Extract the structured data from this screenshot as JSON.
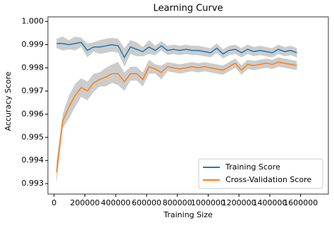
{
  "chart_data": {
    "type": "line",
    "title": "Learning Curve",
    "x_label": "Training Size",
    "y_label": "Accuracy Score",
    "x": [
      16000,
      56000,
      96000,
      136000,
      176000,
      216000,
      256000,
      296000,
      336000,
      376000,
      416000,
      456000,
      496000,
      536000,
      576000,
      616000,
      656000,
      696000,
      736000,
      776000,
      816000,
      856000,
      896000,
      936000,
      976000,
      1016000,
      1056000,
      1096000,
      1136000,
      1176000,
      1216000,
      1256000,
      1296000,
      1336000,
      1376000,
      1416000,
      1456000,
      1496000,
      1536000,
      1576000
    ],
    "series": [
      {
        "name": "Training Score",
        "color": "#1f77b4",
        "values": [
          0.99905,
          0.99905,
          0.999,
          0.99905,
          0.9991,
          0.99875,
          0.9989,
          0.9989,
          0.99895,
          0.999,
          0.99895,
          0.99845,
          0.9989,
          0.9988,
          0.9987,
          0.9989,
          0.99875,
          0.99895,
          0.99875,
          0.9988,
          0.99875,
          0.9988,
          0.99875,
          0.99875,
          0.9987,
          0.99865,
          0.99885,
          0.9986,
          0.99875,
          0.9988,
          0.99865,
          0.9988,
          0.9987,
          0.99875,
          0.9987,
          0.99865,
          0.9988,
          0.9987,
          0.99875,
          0.99865
        ],
        "std": [
          0.0002,
          0.0003,
          0.0002,
          0.0003,
          0.0002,
          0.0003,
          0.0002,
          0.0003,
          0.0003,
          0.0003,
          0.0003,
          0.0004,
          0.0003,
          0.0003,
          0.0002,
          0.0003,
          0.0002,
          0.0002,
          0.0002,
          0.0002,
          0.0002,
          0.0002,
          0.0002,
          0.0002,
          0.0002,
          0.0002,
          0.0002,
          0.0002,
          0.0002,
          0.0002,
          0.0002,
          0.0002,
          0.0002,
          0.0002,
          0.0002,
          0.0002,
          0.0002,
          0.0002,
          0.0002,
          0.0002
        ]
      },
      {
        "name": "Cross-Validation Score",
        "color": "#ff7f0e",
        "values": [
          0.9935,
          0.9957,
          0.9963,
          0.9968,
          0.99715,
          0.997,
          0.99735,
          0.9975,
          0.9976,
          0.99775,
          0.99775,
          0.9974,
          0.99775,
          0.99775,
          0.9975,
          0.99805,
          0.99795,
          0.9978,
          0.99805,
          0.998,
          0.99795,
          0.998,
          0.99805,
          0.998,
          0.99805,
          0.998,
          0.99795,
          0.9979,
          0.99805,
          0.9982,
          0.9979,
          0.99815,
          0.9981,
          0.99815,
          0.9982,
          0.99815,
          0.99825,
          0.9982,
          0.99815,
          0.9981
        ],
        "std": [
          0.0005,
          0.0003,
          0.0005,
          0.0005,
          0.0004,
          0.0004,
          0.0004,
          0.0003,
          0.0004,
          0.0004,
          0.0005,
          0.0004,
          0.0003,
          0.0003,
          0.0003,
          0.0003,
          0.0002,
          0.0003,
          0.0002,
          0.0002,
          0.0002,
          0.0002,
          0.0002,
          0.0002,
          0.0002,
          0.0002,
          0.0002,
          0.0002,
          0.0002,
          0.0002,
          0.0002,
          0.0002,
          0.0002,
          0.0002,
          0.0002,
          0.0002,
          0.0002,
          0.0002,
          0.0002,
          0.0002
        ]
      }
    ],
    "xlim": [
      -40000,
      1780000
    ],
    "xticks": [
      0,
      200000,
      400000,
      600000,
      800000,
      1000000,
      1200000,
      1400000,
      1600000
    ],
    "ylim": [
      0.99255,
      1.0002
    ],
    "yticks": [
      0.993,
      0.994,
      0.995,
      0.996,
      0.997,
      0.998,
      0.999,
      {
        "value": 1,
        "label": "1.000"
      }
    ],
    "legend": "lower right",
    "band_color": "#aaaaaa"
  }
}
